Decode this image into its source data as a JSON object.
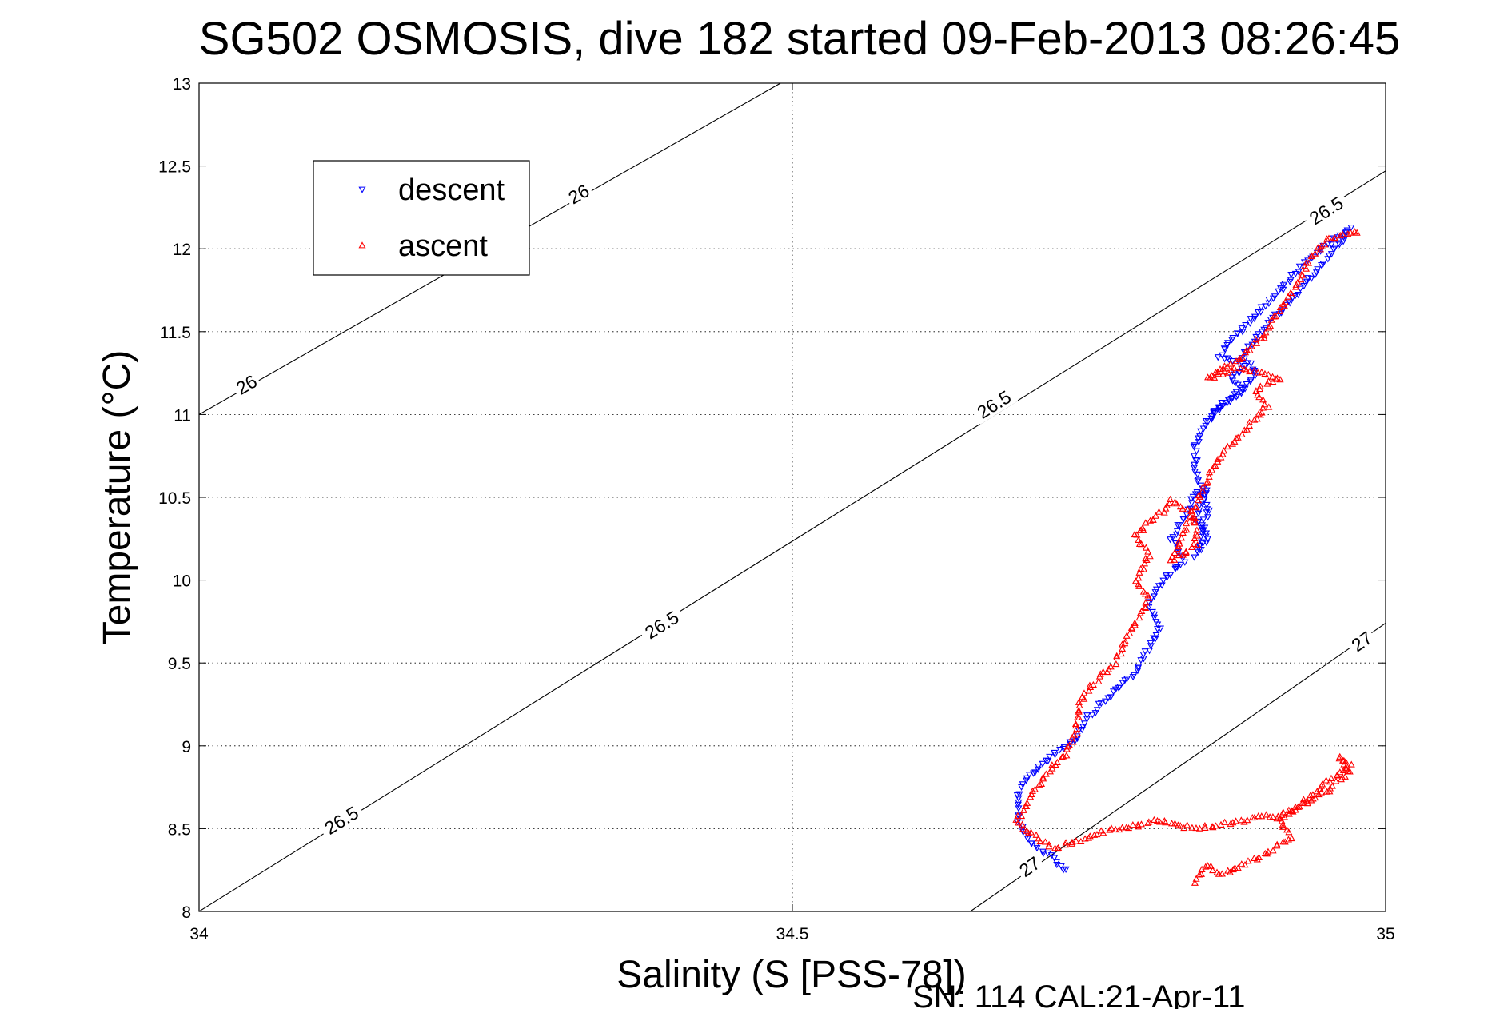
{
  "chart_data": {
    "type": "scatter",
    "title": "SG502 OSMOSIS, dive 182 started 09-Feb-2013 08:26:45",
    "xlabel": "Salinity (S [PSS-78])",
    "ylabel": "Temperature (°C)",
    "xlim": [
      34,
      35
    ],
    "ylim": [
      8,
      13
    ],
    "xticks": [
      34,
      34.5,
      35
    ],
    "xtick_labels": [
      "34",
      "34.5",
      "35"
    ],
    "yticks": [
      8,
      8.5,
      9,
      9.5,
      10,
      10.5,
      11,
      11.5,
      12,
      12.5,
      13
    ],
    "ytick_labels": [
      "8",
      "8.5",
      "9",
      "9.5",
      "10",
      "10.5",
      "11",
      "11.5",
      "12",
      "12.5",
      "13"
    ],
    "grid": true,
    "legend": {
      "position": "top-left",
      "entries": [
        {
          "label": "descent",
          "color": "#0000ff",
          "marker": "triangle-down"
        },
        {
          "label": "ascent",
          "color": "#ff0000",
          "marker": "triangle-up"
        }
      ]
    },
    "contours": [
      {
        "level": "26",
        "points": [
          [
            34.0,
            11.0
          ],
          [
            34.49,
            13.0
          ]
        ],
        "labels": [
          {
            "text": "26",
            "s": 34.04,
            "t": 11.18
          },
          {
            "text": "26",
            "s": 34.32,
            "t": 12.33
          }
        ]
      },
      {
        "level": "26.5",
        "points": [
          [
            34.0,
            8.0
          ],
          [
            35.0,
            12.47
          ]
        ],
        "labels": [
          {
            "text": "26.5",
            "s": 34.12,
            "t": 8.55
          },
          {
            "text": "26.5",
            "s": 34.39,
            "t": 9.73
          },
          {
            "text": "26.5",
            "s": 34.67,
            "t": 11.06
          },
          {
            "text": "26.5",
            "s": 34.95,
            "t": 12.23
          }
        ]
      },
      {
        "level": "27",
        "points": [
          [
            34.65,
            8.0
          ],
          [
            35.0,
            9.74
          ]
        ],
        "labels": [
          {
            "text": "27",
            "s": 34.7,
            "t": 8.27
          },
          {
            "text": "27",
            "s": 34.98,
            "t": 9.63
          }
        ]
      }
    ],
    "series": [
      {
        "name": "descent",
        "color": "#0000ff",
        "marker": "triangle-down",
        "path": [
          [
            34.73,
            8.25
          ],
          [
            34.72,
            8.32
          ],
          [
            34.7,
            8.42
          ],
          [
            34.69,
            8.55
          ],
          [
            34.69,
            8.7
          ],
          [
            34.7,
            8.82
          ],
          [
            34.72,
            8.95
          ],
          [
            34.74,
            9.05
          ],
          [
            34.75,
            9.18
          ],
          [
            34.77,
            9.32
          ],
          [
            34.79,
            9.45
          ],
          [
            34.8,
            9.58
          ],
          [
            34.81,
            9.72
          ],
          [
            34.8,
            9.85
          ],
          [
            34.81,
            9.98
          ],
          [
            34.83,
            10.12
          ],
          [
            34.82,
            10.25
          ],
          [
            34.83,
            10.38
          ],
          [
            34.84,
            10.52
          ],
          [
            34.85,
            10.55
          ],
          [
            34.84,
            10.38
          ],
          [
            34.85,
            10.25
          ],
          [
            34.84,
            10.15
          ],
          [
            34.85,
            10.42
          ],
          [
            34.84,
            10.65
          ],
          [
            34.84,
            10.82
          ],
          [
            34.85,
            10.95
          ],
          [
            34.86,
            11.05
          ],
          [
            34.88,
            11.15
          ],
          [
            34.89,
            11.25
          ],
          [
            34.88,
            11.35
          ],
          [
            34.89,
            11.45
          ],
          [
            34.9,
            11.55
          ],
          [
            34.92,
            11.68
          ],
          [
            34.94,
            11.85
          ],
          [
            34.96,
            12.02
          ],
          [
            34.97,
            12.12
          ],
          [
            34.96,
            12.08
          ],
          [
            34.93,
            11.9
          ],
          [
            34.91,
            11.75
          ],
          [
            34.89,
            11.6
          ],
          [
            34.87,
            11.45
          ],
          [
            34.86,
            11.35
          ],
          [
            34.88,
            11.3
          ],
          [
            34.87,
            11.2
          ],
          [
            34.88,
            11.15
          ],
          [
            34.86,
            11.05
          ],
          [
            34.85,
            10.95
          ]
        ]
      },
      {
        "name": "ascent",
        "color": "#ff0000",
        "marker": "triangle-up",
        "path": [
          [
            34.84,
            8.18
          ],
          [
            34.85,
            8.28
          ],
          [
            34.86,
            8.22
          ],
          [
            34.88,
            8.28
          ],
          [
            34.9,
            8.35
          ],
          [
            34.92,
            8.45
          ],
          [
            34.91,
            8.55
          ],
          [
            34.93,
            8.65
          ],
          [
            34.95,
            8.78
          ],
          [
            34.97,
            8.88
          ],
          [
            34.96,
            8.93
          ],
          [
            34.97,
            8.85
          ],
          [
            34.95,
            8.72
          ],
          [
            34.92,
            8.6
          ],
          [
            34.88,
            8.55
          ],
          [
            34.84,
            8.5
          ],
          [
            34.81,
            8.55
          ],
          [
            34.79,
            8.52
          ],
          [
            34.76,
            8.48
          ],
          [
            34.74,
            8.42
          ],
          [
            34.72,
            8.38
          ],
          [
            34.7,
            8.48
          ],
          [
            34.69,
            8.55
          ],
          [
            34.7,
            8.68
          ],
          [
            34.71,
            8.8
          ],
          [
            34.73,
            8.95
          ],
          [
            34.74,
            9.1
          ],
          [
            34.74,
            9.22
          ],
          [
            34.75,
            9.35
          ],
          [
            34.77,
            9.48
          ],
          [
            34.78,
            9.62
          ],
          [
            34.79,
            9.75
          ],
          [
            34.8,
            9.88
          ],
          [
            34.79,
            10.0
          ],
          [
            34.8,
            10.15
          ],
          [
            34.79,
            10.28
          ],
          [
            34.81,
            10.4
          ],
          [
            34.82,
            10.48
          ],
          [
            34.84,
            10.38
          ],
          [
            34.84,
            10.22
          ],
          [
            34.82,
            10.12
          ],
          [
            34.84,
            10.45
          ],
          [
            34.85,
            10.62
          ],
          [
            34.86,
            10.75
          ],
          [
            34.88,
            10.9
          ],
          [
            34.9,
            11.05
          ],
          [
            34.89,
            11.15
          ],
          [
            34.91,
            11.22
          ],
          [
            34.88,
            11.28
          ],
          [
            34.85,
            11.22
          ],
          [
            34.88,
            11.35
          ],
          [
            34.9,
            11.5
          ],
          [
            34.91,
            11.62
          ],
          [
            34.92,
            11.72
          ],
          [
            34.93,
            11.85
          ],
          [
            34.94,
            11.98
          ],
          [
            34.95,
            12.05
          ],
          [
            34.97,
            12.1
          ],
          [
            34.98,
            12.08
          ]
        ]
      }
    ]
  },
  "footer": "SN: 114  CAL:21-Apr-11"
}
